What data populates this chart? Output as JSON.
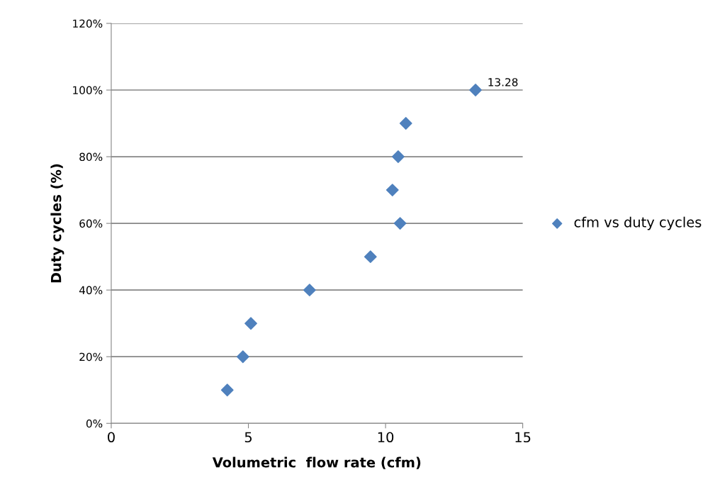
{
  "chart_data": {
    "type": "scatter",
    "xlabel": "Volumetric  flow rate (cfm)",
    "ylabel": "Duty cycles (%)",
    "x": [
      4.23,
      4.8,
      5.09,
      7.23,
      9.45,
      10.53,
      10.25,
      10.46,
      10.74,
      13.28
    ],
    "series": [
      {
        "name": "cfm vs duty cycles",
        "color": "#4f81bd",
        "values": [
          10,
          20,
          30,
          40,
          50,
          60,
          70,
          80,
          90,
          100
        ]
      }
    ],
    "xlim": [
      0,
      15
    ],
    "xticks": [
      0,
      5,
      10,
      15
    ],
    "ylim": [
      0,
      120
    ],
    "yticks": [
      {
        "value": 0,
        "label": "0%"
      },
      {
        "value": 20,
        "label": "20%"
      },
      {
        "value": 40,
        "label": "40%"
      },
      {
        "value": 60,
        "label": "60%"
      },
      {
        "value": 80,
        "label": "80%"
      },
      {
        "value": 100,
        "label": "100%"
      },
      {
        "value": 120,
        "label": "120%"
      }
    ],
    "annotations": [
      {
        "text": "13.28",
        "x": 13.28,
        "y": 100
      }
    ],
    "grid": "y",
    "legend": "right",
    "marker": "diamond"
  }
}
